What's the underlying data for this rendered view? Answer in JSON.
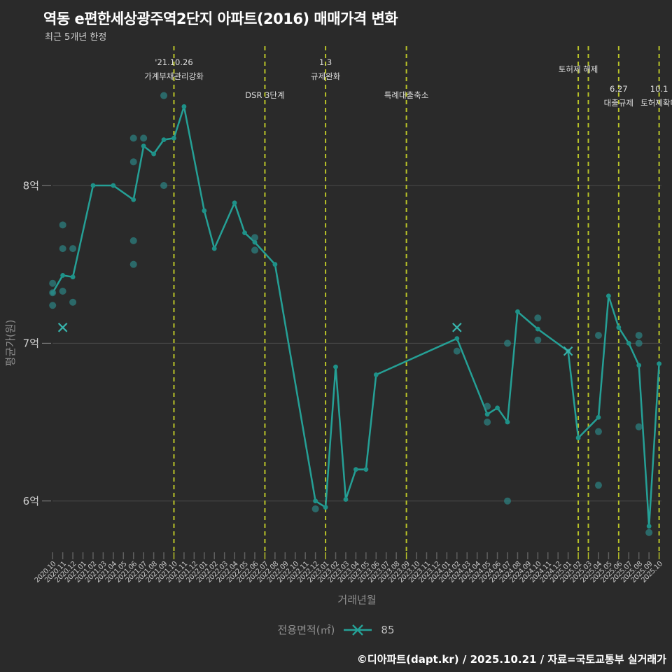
{
  "header": {
    "title": "역동 e편한세상광주역2단지 아파트(2016) 매매가격 변화",
    "subtitle": "최근 5개년 한정"
  },
  "chart_data": {
    "type": "line",
    "title": "역동 e편한세상광주역2단지 아파트(2016) 매매가격 변화",
    "xlabel": "거래년월",
    "ylabel": "평균가(원)",
    "ylim": [
      5.66,
      8.88
    ],
    "grid": true,
    "legend_position": "bottom-center",
    "y_ticks": [
      {
        "label": "8억",
        "value": 8
      },
      {
        "label": "7억",
        "value": 7
      },
      {
        "label": "6억",
        "value": 6
      }
    ],
    "x_categories": [
      "2020.10",
      "2020.11",
      "2020.12",
      "2021.01",
      "2021.02",
      "2021.03",
      "2021.04",
      "2021.05",
      "2021.06",
      "2021.07",
      "2021.08",
      "2021.09",
      "2021.10",
      "2021.11",
      "2021.12",
      "2022.01",
      "2022.02",
      "2022.03",
      "2022.04",
      "2022.05",
      "2022.06",
      "2022.07",
      "2022.08",
      "2022.09",
      "2022.10",
      "2022.11",
      "2022.12",
      "2023.01",
      "2023.02",
      "2023.03",
      "2023.04",
      "2023.05",
      "2023.06",
      "2023.07",
      "2023.08",
      "2023.09",
      "2023.10",
      "2023.11",
      "2023.12",
      "2024.01",
      "2024.02",
      "2024.03",
      "2024.04",
      "2024.05",
      "2024.06",
      "2024.07",
      "2024.08",
      "2024.09",
      "2024.10",
      "2024.11",
      "2024.12",
      "2025.01",
      "2025.02",
      "2025.03",
      "2025.04",
      "2025.05",
      "2025.06",
      "2025.07",
      "2025.08",
      "2025.09",
      "2025.10"
    ],
    "series": [
      {
        "name": "85",
        "type": "monthly-average-line",
        "values": [
          7.32,
          7.43,
          7.42,
          null,
          8.0,
          null,
          8.0,
          null,
          7.91,
          8.25,
          8.2,
          8.29,
          8.3,
          8.5,
          null,
          7.84,
          7.6,
          null,
          7.89,
          7.7,
          7.64,
          null,
          7.5,
          null,
          null,
          null,
          6.0,
          5.96,
          6.85,
          6.01,
          6.2,
          6.2,
          6.8,
          null,
          null,
          null,
          null,
          null,
          null,
          null,
          7.03,
          null,
          null,
          6.55,
          6.59,
          6.5,
          7.2,
          null,
          7.09,
          null,
          null,
          6.95,
          6.4,
          null,
          6.53,
          7.3,
          7.1,
          7.0,
          6.86,
          5.84,
          6.87
        ]
      }
    ],
    "scatter_points": [
      [
        "2020.10",
        7.38
      ],
      [
        "2020.10",
        7.32
      ],
      [
        "2020.10",
        7.24
      ],
      [
        "2020.11",
        7.75
      ],
      [
        "2020.11",
        7.6
      ],
      [
        "2020.11",
        7.33
      ],
      [
        "2020.12",
        7.6
      ],
      [
        "2020.12",
        7.26
      ],
      [
        "2021.06",
        8.3
      ],
      [
        "2021.06",
        8.15
      ],
      [
        "2021.06",
        7.65
      ],
      [
        "2021.06",
        7.5
      ],
      [
        "2021.07",
        8.3
      ],
      [
        "2021.09",
        8.57
      ],
      [
        "2021.09",
        8.0
      ],
      [
        "2022.06",
        7.67
      ],
      [
        "2022.06",
        7.59
      ],
      [
        "2022.12",
        5.95
      ],
      [
        "2024.02",
        6.95
      ],
      [
        "2024.05",
        6.6
      ],
      [
        "2024.05",
        6.5
      ],
      [
        "2024.07",
        7.0
      ],
      [
        "2024.07",
        6.0
      ],
      [
        "2024.10",
        7.16
      ],
      [
        "2024.10",
        7.02
      ],
      [
        "2025.04",
        7.05
      ],
      [
        "2025.04",
        6.44
      ],
      [
        "2025.04",
        6.1
      ],
      [
        "2025.08",
        7.05
      ],
      [
        "2025.08",
        7.0
      ],
      [
        "2025.08",
        6.47
      ],
      [
        "2025.09",
        5.8
      ]
    ],
    "x_markers": [
      [
        "2020.11",
        7.1
      ],
      [
        "2024.02",
        7.1
      ],
      [
        "2025.01",
        6.95
      ]
    ],
    "event_lines": [
      {
        "month": "2021.10",
        "labels": [
          {
            "text": "'21.10.26",
            "y": 93
          },
          {
            "text": "가계부채관리강화",
            "y": 113
          }
        ]
      },
      {
        "month": "2022.07",
        "labels": [
          {
            "text": "DSR 3단계",
            "y": 140
          }
        ]
      },
      {
        "month": "2023.01",
        "labels": [
          {
            "text": "1.3",
            "y": 93
          },
          {
            "text": "규제완화",
            "y": 113
          }
        ]
      },
      {
        "month": "2023.09",
        "labels": [
          {
            "text": "특례대출축소",
            "y": 140
          }
        ]
      },
      {
        "month": "2025.02",
        "labels": [
          {
            "text": "토허제 해제",
            "y": 103
          }
        ]
      },
      {
        "month": "2025.03",
        "labels": []
      },
      {
        "month": "2025.06",
        "labels": [
          {
            "text": "6.27",
            "y": 131
          },
          {
            "text": "대출규제",
            "y": 151
          }
        ]
      },
      {
        "month": "2025.10",
        "labels": [
          {
            "text": "10.1",
            "y": 131
          },
          {
            "text": "토허제확대",
            "y": 151
          }
        ]
      }
    ],
    "colors": {
      "background": "#2a2a2a",
      "line": "#25a096",
      "vertex": "#1e9188",
      "scatter": "#2c8282",
      "x_marker": "#37b3ab",
      "event_line": "#b9c328",
      "grid": "#4a4a4a",
      "tick_label": "#c6c6c6",
      "axis_title": "#8f8f8f",
      "annotation": "#dedede"
    }
  },
  "legend": {
    "label": "전용면적(㎡)",
    "series_value": "85"
  },
  "footer": {
    "credit": "©디아파트(dapt.kr) / 2025.10.21 / 자료=국토교통부 실거래가"
  }
}
